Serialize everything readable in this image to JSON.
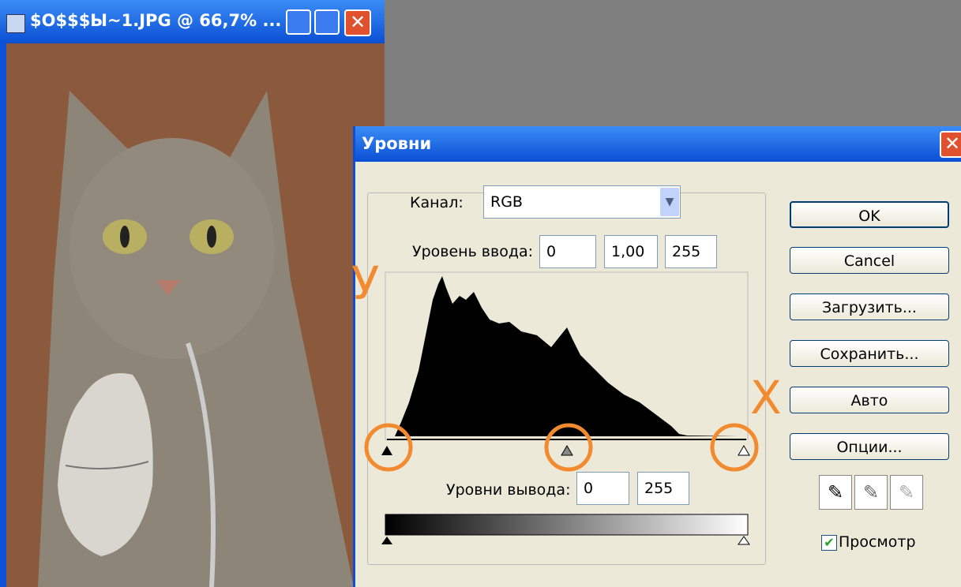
{
  "image_window": {
    "title": "$O$$$Ы~1.JPG @ 66,7% ..."
  },
  "dialog": {
    "title": "Уровни",
    "channel_label": "Канал:",
    "channel_value": "RGB",
    "input_levels_label": "Уровень ввода:",
    "input_levels": [
      "0",
      "1,00",
      "255"
    ],
    "output_levels_label": "Уровни вывода:",
    "output_levels": [
      "0",
      "255"
    ],
    "buttons": [
      "OK",
      "Cancel",
      "Загрузить...",
      "Сохранить...",
      "Авто",
      "Опции..."
    ],
    "preview_label": "Просмотр"
  },
  "annotations": {
    "y_axis": "У",
    "x_axis": "X"
  }
}
